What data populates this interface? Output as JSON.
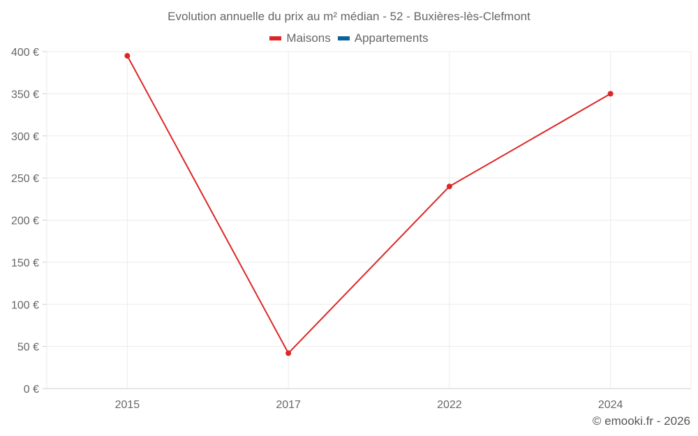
{
  "chart_data": {
    "type": "line",
    "title": "Evolution annuelle du prix au m² médian - 52 - Buxières-lès-Clefmont",
    "categories": [
      "2015",
      "2017",
      "2022",
      "2024"
    ],
    "series": [
      {
        "name": "Maisons",
        "color": "#dc2626",
        "values": [
          395,
          42,
          240,
          350
        ]
      },
      {
        "name": "Appartements",
        "color": "#0e6199",
        "values": [
          null,
          null,
          null,
          null
        ]
      }
    ],
    "ylim": [
      0,
      400
    ],
    "yticks": [
      0,
      50,
      100,
      150,
      200,
      250,
      300,
      350,
      400
    ],
    "ytick_suffix": " €",
    "xlabel": "",
    "ylabel": "",
    "grid": true,
    "legend_position": "top-center"
  },
  "footer": "© emooki.fr - 2026"
}
